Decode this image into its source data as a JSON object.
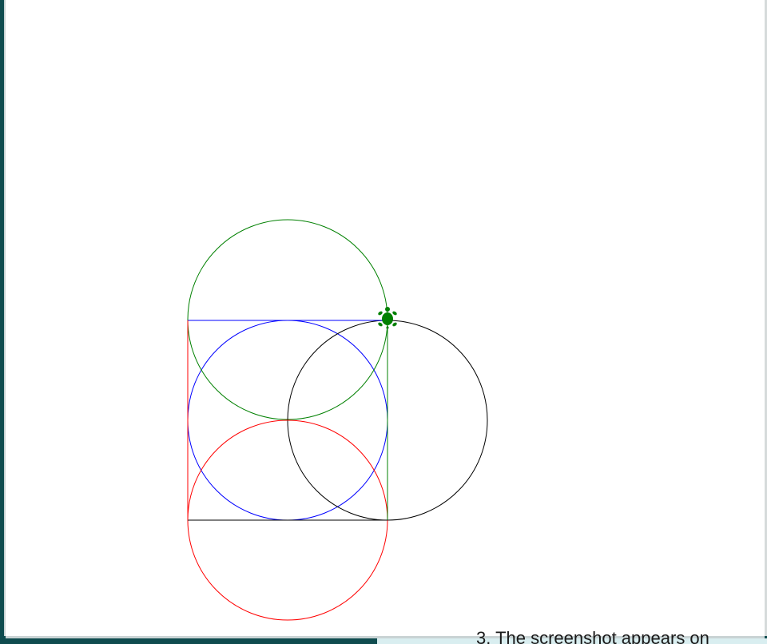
{
  "canvas": {
    "background": "#ffffff",
    "shapes": [
      {
        "kind": "circle",
        "name": "blue",
        "color": "#0000ff"
      },
      {
        "kind": "circle",
        "name": "green",
        "color": "#008000"
      },
      {
        "kind": "circle",
        "name": "black",
        "color": "#000000"
      },
      {
        "kind": "circle",
        "name": "red",
        "color": "#ff0000"
      }
    ],
    "square_edges": [
      {
        "side": "top",
        "color": "#0000ff"
      },
      {
        "side": "right",
        "color": "#008000"
      },
      {
        "side": "bottom",
        "color": "#000000"
      },
      {
        "side": "left",
        "color": "#ff0000"
      }
    ],
    "turtle": {
      "icon": "turtle-icon",
      "color": "#008000"
    }
  },
  "frame": {
    "edge_color": "#0f4c4f",
    "footer_text": "3. The screenshot appears on"
  }
}
